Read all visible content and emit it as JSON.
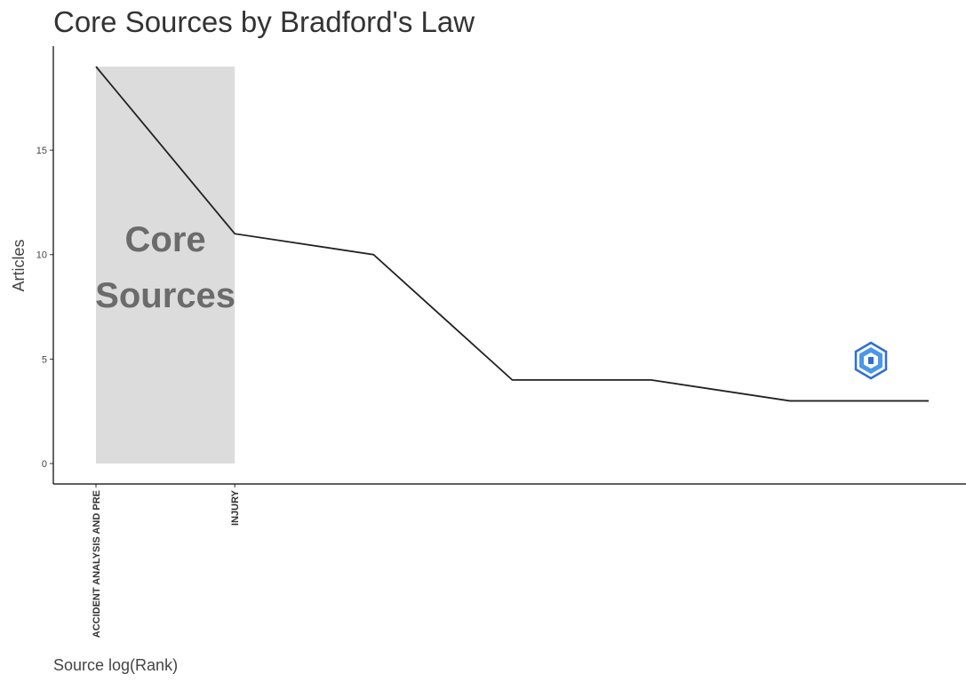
{
  "chart_data": {
    "type": "line",
    "title": "Core Sources by Bradford's Law",
    "xlabel": "Source log(Rank)",
    "ylabel": "Articles",
    "x_scale": "log",
    "x": [
      1,
      2,
      3,
      4,
      5,
      6,
      7
    ],
    "values": [
      19,
      11,
      10,
      4,
      4,
      3,
      3
    ],
    "ylim": [
      0,
      19
    ],
    "yticks": [
      "0",
      "5",
      "10",
      "15"
    ],
    "x_tick_labels": [
      {
        "rank": 1,
        "label": "ACCIDENT ANALYSIS AND PRE"
      },
      {
        "rank": 2,
        "label": "INJURY"
      }
    ],
    "core_zone": {
      "from_rank": 1,
      "to_rank": 2,
      "label_lines": [
        "Core",
        "Sources"
      ],
      "color": "#dcdcdc"
    },
    "line_color": "#222222",
    "grid": false
  },
  "watermark": {
    "icon": "bibliometrix-logo-icon",
    "color": "#3a7fd9"
  }
}
